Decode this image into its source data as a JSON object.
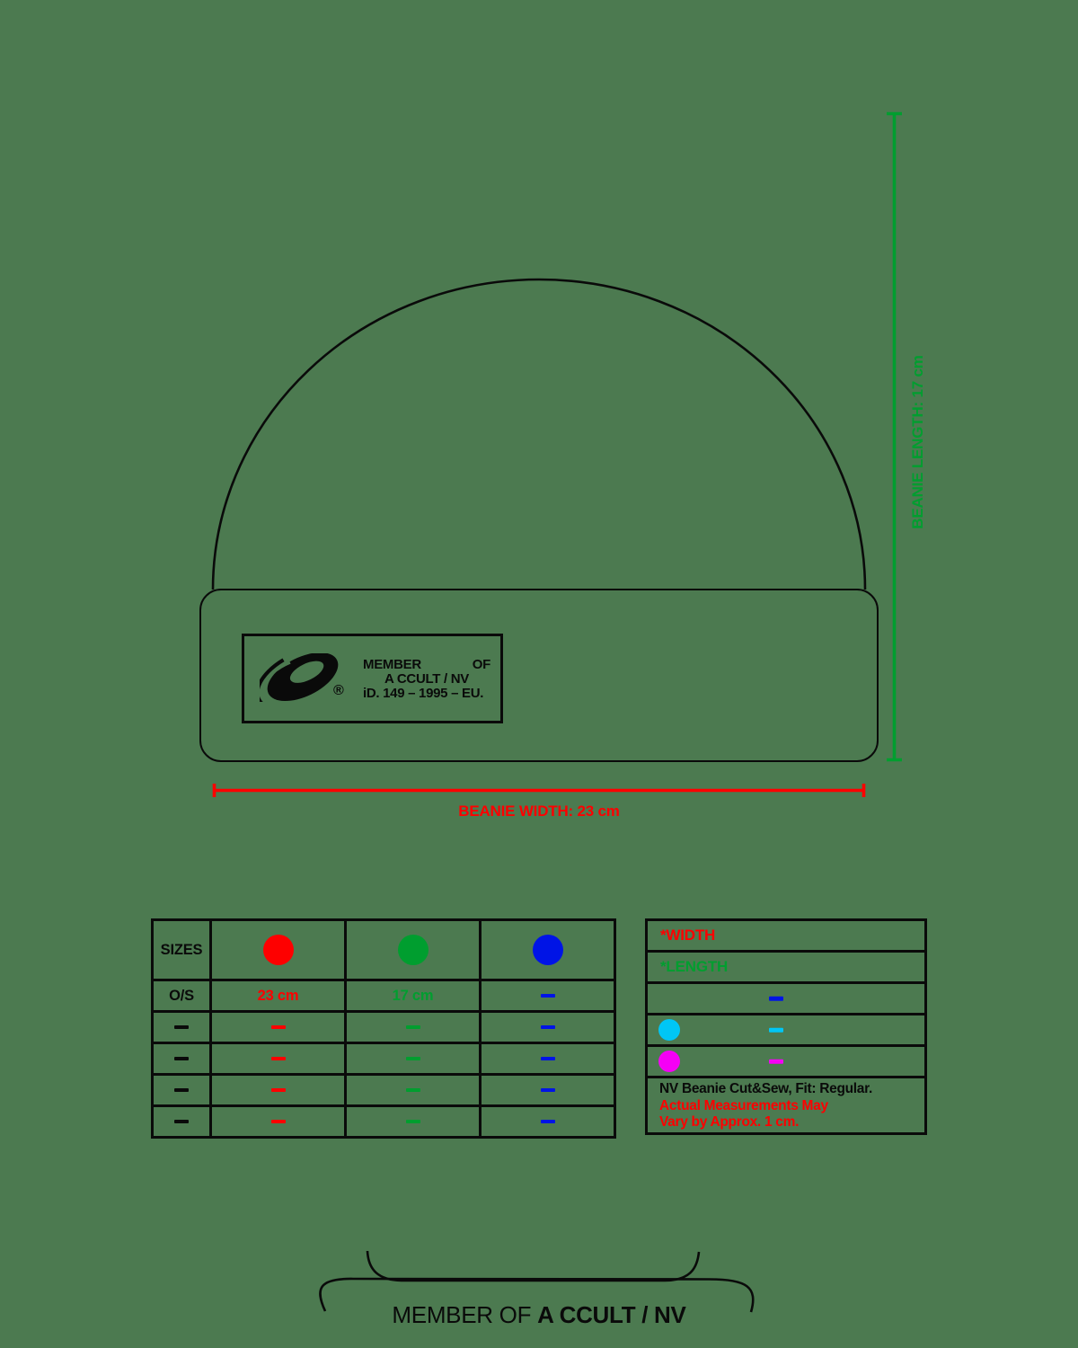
{
  "colors": {
    "background": "#4C7A50",
    "ink": "#0A0A0A",
    "red": "#FE0000",
    "green": "#009E2F",
    "blue": "#0014E6",
    "cyan": "#00C6F5",
    "magenta": "#F500F5"
  },
  "patch": {
    "line1_left": "MEMBER",
    "line1_right": "OF",
    "line2": "A CCULT / NV",
    "line3": "iD. 149 – 1995 – EU.",
    "registered": "®",
    "logo_icon": "swoosh-oval-logo"
  },
  "measurements": {
    "width_label": "BEANIE WIDTH: 23 cm",
    "width_value": "23 cm",
    "width_color": "#FE0000",
    "length_label": "BEANIE LENGTH: 17 cm",
    "length_value": "17 cm",
    "length_color": "#009E2F"
  },
  "size_table": {
    "header_label": "SIZES",
    "columns": [
      {
        "dot": "red-dot",
        "color": "#FE0000"
      },
      {
        "dot": "green-dot",
        "color": "#009E2F"
      },
      {
        "dot": "blue-dot",
        "color": "#0014E6"
      }
    ],
    "rows": [
      {
        "label": "O/S",
        "values": [
          "23 cm",
          "17 cm",
          "-"
        ]
      },
      {
        "label": "-",
        "values": [
          "-",
          "-",
          "-"
        ]
      },
      {
        "label": "-",
        "values": [
          "-",
          "-",
          "-"
        ]
      },
      {
        "label": "-",
        "values": [
          "-",
          "-",
          "-"
        ]
      },
      {
        "label": "-",
        "values": [
          "-",
          "-",
          "-"
        ]
      }
    ]
  },
  "legend_table": {
    "rows": [
      {
        "type": "label",
        "text": "*WIDTH",
        "color": "#FE0000"
      },
      {
        "type": "label",
        "text": "*LENGTH",
        "color": "#009E2F"
      },
      {
        "type": "dash",
        "color": "#0014E6"
      },
      {
        "type": "dot_dash",
        "color": "#00C6F5"
      },
      {
        "type": "dot_dash",
        "color": "#F500F5"
      },
      {
        "type": "note",
        "lines": [
          {
            "text": "NV Beanie Cut&Sew, Fit: Regular.",
            "color": "#0A0A0A"
          },
          {
            "text": "Actual Measurements May",
            "color": "#FE0000"
          },
          {
            "text": "Vary by Approx. 1 cm.",
            "color": "#FE0000"
          }
        ]
      }
    ]
  },
  "footer": {
    "text_regular": "MEMBER OF",
    "text_bold": "A CCULT / NV"
  }
}
